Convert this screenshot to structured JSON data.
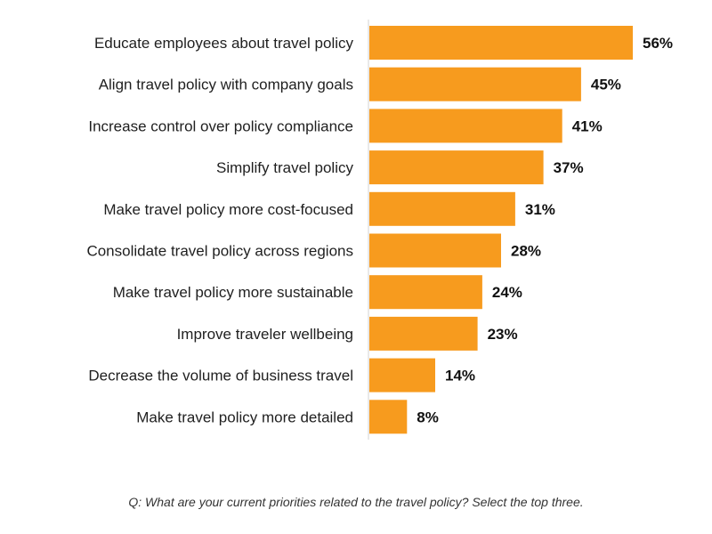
{
  "chart_data": {
    "type": "bar",
    "orientation": "horizontal",
    "categories": [
      "Educate employees about travel policy",
      "Align travel policy with company goals",
      "Increase control over policy compliance",
      "Simplify travel policy",
      "Make travel policy more cost-focused",
      "Consolidate travel policy across regions",
      "Make travel policy more sustainable",
      "Improve traveler wellbeing",
      "Decrease the volume of business travel",
      "Make travel policy more detailed"
    ],
    "values": [
      56,
      45,
      41,
      37,
      31,
      28,
      24,
      23,
      14,
      8
    ],
    "value_labels": [
      "56%",
      "45%",
      "41%",
      "37%",
      "31%",
      "28%",
      "24%",
      "23%",
      "14%",
      "8%"
    ],
    "unit": "%",
    "xlim": [
      0,
      100
    ],
    "grid": false,
    "legend": "none",
    "bar_color": "#F79B1E",
    "footnote": "Q: What are your current priorities related to the travel policy? Select the top three."
  }
}
